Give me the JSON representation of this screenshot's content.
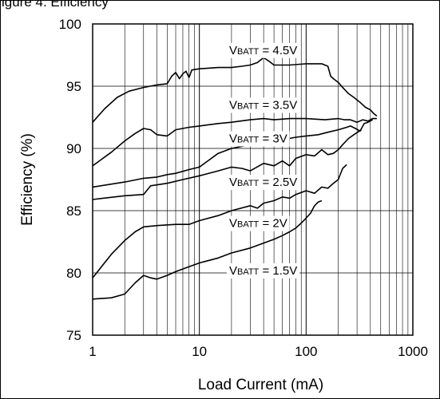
{
  "figure": {
    "title_fragment": "igure 4. Efficiency"
  },
  "chart_data": {
    "type": "line",
    "xlabel": "Load Current (mA)",
    "ylabel": "Efficiency (%)",
    "xscale": "log",
    "xlim": [
      1,
      1000
    ],
    "ylim": [
      75,
      100
    ],
    "xticks": [
      "1",
      "10",
      "100",
      "1000"
    ],
    "yticks": [
      "75",
      "80",
      "85",
      "90",
      "95",
      "100"
    ],
    "grid": true,
    "legend": "inline-labels",
    "line_color": "#000000",
    "series": [
      {
        "name": "VBATT = 4.5V",
        "label_main": "VBATT = 4.5V",
        "label_x": 33,
        "label_y": 97.9,
        "points": [
          [
            1,
            92.1
          ],
          [
            1.3,
            93.2
          ],
          [
            1.7,
            94.1
          ],
          [
            2.2,
            94.6
          ],
          [
            3,
            94.9
          ],
          [
            4,
            95.1
          ],
          [
            5,
            95.2
          ],
          [
            5.5,
            95.8
          ],
          [
            6,
            96.1
          ],
          [
            6.5,
            95.6
          ],
          [
            7,
            96.0
          ],
          [
            7.5,
            96.2
          ],
          [
            8,
            95.7
          ],
          [
            8.5,
            96.3
          ],
          [
            10,
            96.4
          ],
          [
            15,
            96.5
          ],
          [
            20,
            96.5
          ],
          [
            25,
            96.6
          ],
          [
            30,
            96.7
          ],
          [
            35,
            96.9
          ],
          [
            40,
            97.3
          ],
          [
            45,
            97.0
          ],
          [
            50,
            96.7
          ],
          [
            70,
            96.7
          ],
          [
            100,
            96.8
          ],
          [
            140,
            96.8
          ],
          [
            160,
            96.6
          ],
          [
            170,
            95.8
          ],
          [
            180,
            95.6
          ],
          [
            200,
            95.3
          ],
          [
            220,
            94.9
          ],
          [
            250,
            94.4
          ],
          [
            280,
            94.1
          ],
          [
            310,
            93.8
          ],
          [
            330,
            93.6
          ],
          [
            360,
            93.3
          ],
          [
            400,
            93.1
          ],
          [
            430,
            92.8
          ],
          [
            460,
            92.6
          ]
        ]
      },
      {
        "name": "VBATT = 3.5V",
        "label_main": "VBATT = 3.5V",
        "label_x": 33,
        "label_y": 93.5,
        "points": [
          [
            1,
            88.6
          ],
          [
            1.5,
            89.7
          ],
          [
            2,
            90.6
          ],
          [
            2.5,
            91.2
          ],
          [
            3,
            91.6
          ],
          [
            3.5,
            91.5
          ],
          [
            4,
            91.1
          ],
          [
            5,
            91.0
          ],
          [
            6,
            91.5
          ],
          [
            8,
            91.7
          ],
          [
            10,
            91.8
          ],
          [
            15,
            92.0
          ],
          [
            20,
            92.1
          ],
          [
            30,
            92.3
          ],
          [
            40,
            92.4
          ],
          [
            50,
            92.3
          ],
          [
            70,
            92.4
          ],
          [
            100,
            92.4
          ],
          [
            150,
            92.3
          ],
          [
            200,
            92.4
          ],
          [
            230,
            92.3
          ],
          [
            260,
            92.3
          ],
          [
            300,
            92.1
          ],
          [
            340,
            92.3
          ],
          [
            380,
            92.2
          ],
          [
            420,
            92.4
          ],
          [
            460,
            92.4
          ]
        ]
      },
      {
        "name": "VBATT = 3V",
        "label_main": "VBATT = 3V",
        "label_x": 33,
        "label_y": 90.8,
        "points": [
          [
            1,
            86.9
          ],
          [
            2,
            87.3
          ],
          [
            3,
            87.6
          ],
          [
            4,
            87.7
          ],
          [
            5,
            87.9
          ],
          [
            6,
            88.0
          ],
          [
            8,
            88.3
          ],
          [
            10,
            88.5
          ],
          [
            12,
            89.0
          ],
          [
            15,
            89.6
          ],
          [
            20,
            90.0
          ],
          [
            30,
            90.3
          ],
          [
            40,
            90.5
          ],
          [
            60,
            90.7
          ],
          [
            80,
            90.9
          ],
          [
            100,
            91.0
          ],
          [
            130,
            91.1
          ],
          [
            160,
            91.3
          ],
          [
            200,
            91.5
          ],
          [
            240,
            91.7
          ],
          [
            260,
            91.8
          ],
          [
            290,
            91.6
          ],
          [
            320,
            91.4
          ],
          [
            350,
            92.0
          ],
          [
            380,
            92.1
          ],
          [
            420,
            92.3
          ]
        ]
      },
      {
        "name": "VBATT = 2.5V",
        "label_main": "VBATT = 2.5V",
        "label_x": 33,
        "label_y": 87.3,
        "points": [
          [
            1,
            85.9
          ],
          [
            2,
            86.2
          ],
          [
            3,
            86.3
          ],
          [
            3.5,
            87.0
          ],
          [
            5,
            87.2
          ],
          [
            7,
            87.5
          ],
          [
            10,
            87.8
          ],
          [
            15,
            88.2
          ],
          [
            20,
            88.5
          ],
          [
            25,
            88.4
          ],
          [
            30,
            88.2
          ],
          [
            40,
            88.8
          ],
          [
            50,
            88.6
          ],
          [
            60,
            89.0
          ],
          [
            70,
            88.6
          ],
          [
            80,
            89.2
          ],
          [
            100,
            89.5
          ],
          [
            120,
            89.4
          ],
          [
            140,
            89.9
          ],
          [
            160,
            89.5
          ],
          [
            180,
            89.6
          ],
          [
            200,
            89.9
          ],
          [
            220,
            90.3
          ],
          [
            250,
            90.8
          ],
          [
            280,
            91.1
          ],
          [
            330,
            91.5
          ]
        ]
      },
      {
        "name": "VBATT = 2V",
        "label_main": "VBATT = 2V",
        "label_x": 33,
        "label_y": 84.0,
        "points": [
          [
            1,
            79.6
          ],
          [
            1.5,
            81.5
          ],
          [
            2,
            82.6
          ],
          [
            2.5,
            83.3
          ],
          [
            3,
            83.7
          ],
          [
            4,
            83.8
          ],
          [
            6,
            83.9
          ],
          [
            8,
            83.9
          ],
          [
            10,
            84.2
          ],
          [
            15,
            84.6
          ],
          [
            20,
            85.0
          ],
          [
            30,
            85.4
          ],
          [
            35,
            85.2
          ],
          [
            40,
            85.6
          ],
          [
            50,
            85.8
          ],
          [
            60,
            86.1
          ],
          [
            70,
            86.0
          ],
          [
            80,
            86.3
          ],
          [
            100,
            86.6
          ],
          [
            120,
            86.4
          ],
          [
            140,
            86.9
          ],
          [
            160,
            86.8
          ],
          [
            180,
            87.2
          ],
          [
            200,
            87.5
          ],
          [
            220,
            88.4
          ],
          [
            240,
            88.7
          ]
        ]
      },
      {
        "name": "VBATT = 1.5V",
        "label_main": "VBATT = 1.5V",
        "label_x": 33,
        "label_y": 80.2,
        "points": [
          [
            1,
            77.9
          ],
          [
            1.5,
            78.0
          ],
          [
            2,
            78.3
          ],
          [
            2.5,
            79.2
          ],
          [
            3,
            79.8
          ],
          [
            3.5,
            79.6
          ],
          [
            4,
            79.5
          ],
          [
            5,
            79.8
          ],
          [
            6,
            80.1
          ],
          [
            8,
            80.5
          ],
          [
            10,
            80.8
          ],
          [
            15,
            81.2
          ],
          [
            20,
            81.6
          ],
          [
            30,
            82.0
          ],
          [
            40,
            82.4
          ],
          [
            50,
            82.7
          ],
          [
            60,
            83.0
          ],
          [
            70,
            83.3
          ],
          [
            80,
            83.6
          ],
          [
            90,
            84.0
          ],
          [
            100,
            84.4
          ],
          [
            110,
            84.8
          ],
          [
            120,
            85.4
          ],
          [
            130,
            85.7
          ],
          [
            140,
            85.8
          ]
        ]
      }
    ]
  }
}
